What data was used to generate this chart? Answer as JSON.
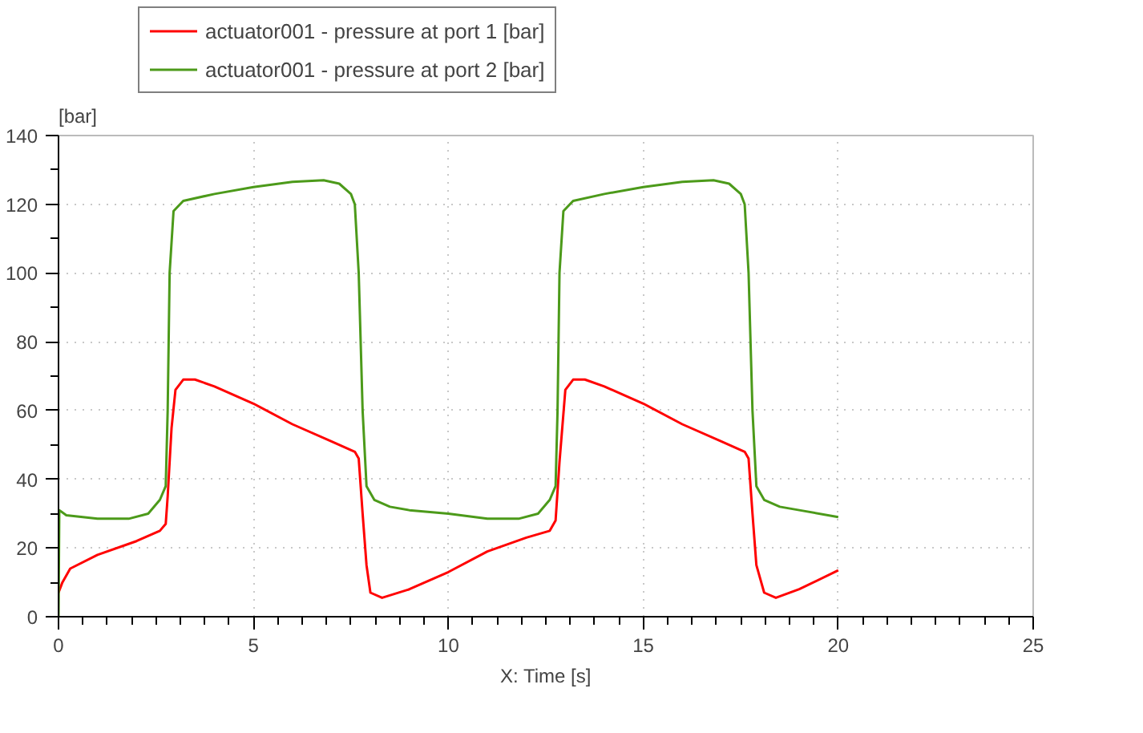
{
  "chart_data": {
    "type": "line",
    "xlabel": "X: Time [s]",
    "ylabel": "[bar]",
    "xlim": [
      0,
      25
    ],
    "xticks": [
      0,
      5,
      10,
      15,
      20,
      25
    ],
    "ylim": [
      0,
      140
    ],
    "yticks": [
      0,
      20,
      40,
      60,
      80,
      100,
      120,
      140
    ],
    "grid": true,
    "legend": "top left",
    "line_style": "solid",
    "series": [
      {
        "name": "actuator001 - pressure at port 1 [bar]",
        "color": "#ff0000",
        "x": [
          0,
          0.1,
          0.3,
          1,
          2,
          2.6,
          2.75,
          2.8,
          2.9,
          3.0,
          3.2,
          3.5,
          4,
          5,
          6,
          7,
          7.6,
          7.7,
          7.8,
          7.9,
          8.0,
          8.3,
          9,
          10,
          11,
          12,
          12.6,
          12.75,
          12.85,
          13.0,
          13.2,
          13.5,
          14,
          15,
          16,
          17,
          17.6,
          17.7,
          17.8,
          17.9,
          18.1,
          18.4,
          19,
          20
        ],
        "values": [
          7,
          10,
          14,
          18,
          22,
          25,
          27,
          35,
          55,
          66,
          69,
          69,
          67,
          62,
          56,
          51,
          48,
          46,
          30,
          15,
          7,
          5.5,
          8,
          13,
          19,
          23,
          25,
          28,
          45,
          66,
          69,
          69,
          67,
          62,
          56,
          51,
          48,
          46,
          30,
          15,
          7,
          5.5,
          8,
          13.5
        ]
      },
      {
        "name": "actuator001 - pressure at port 2 [bar]",
        "color": "#4c9a1a",
        "x": [
          0,
          0.02,
          0.2,
          1,
          1.8,
          2.3,
          2.6,
          2.75,
          2.8,
          2.85,
          2.95,
          3.2,
          4,
          5,
          6,
          6.8,
          7.2,
          7.5,
          7.6,
          7.7,
          7.8,
          7.9,
          8.1,
          8.5,
          9,
          10,
          11,
          11.8,
          12.3,
          12.6,
          12.75,
          12.8,
          12.85,
          12.95,
          13.2,
          14,
          15,
          16,
          16.8,
          17.2,
          17.5,
          17.6,
          17.7,
          17.8,
          17.9,
          18.1,
          18.5,
          19,
          20
        ],
        "values": [
          0,
          31,
          29.5,
          28.5,
          28.5,
          30,
          34,
          38,
          60,
          100,
          118,
          121,
          123,
          125,
          126.5,
          127,
          126,
          123,
          120,
          100,
          60,
          38,
          34,
          32,
          31,
          30,
          28.5,
          28.5,
          30,
          34,
          38,
          60,
          100,
          118,
          121,
          123,
          125,
          126.5,
          127,
          126,
          123,
          120,
          100,
          60,
          38,
          34,
          32,
          31,
          29
        ]
      }
    ]
  }
}
